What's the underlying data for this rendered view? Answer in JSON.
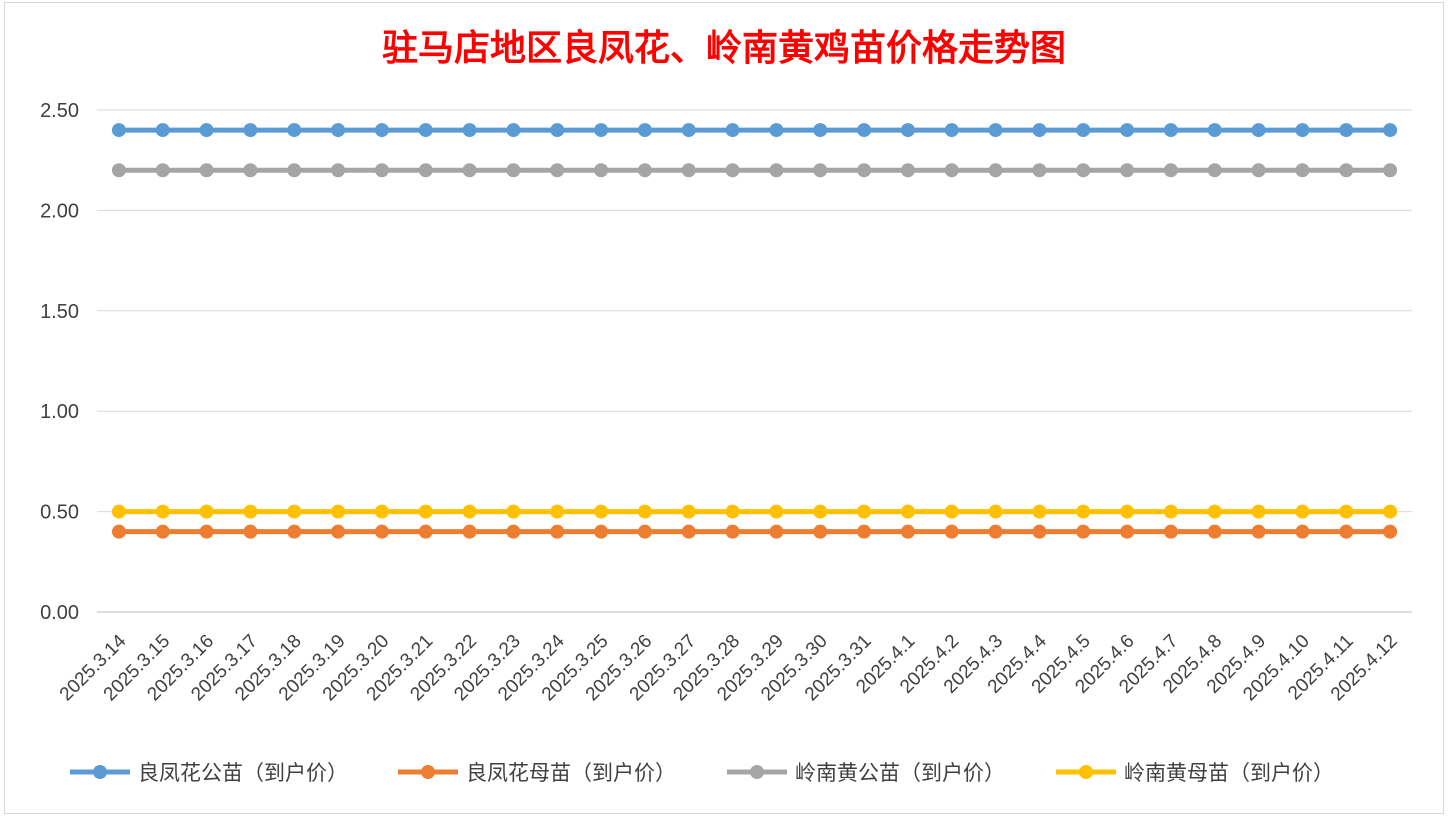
{
  "chart_data": {
    "type": "line",
    "title": "驻马店地区良凤花、岭南黄鸡苗价格走势图",
    "xlabel": "",
    "ylabel": "",
    "ylim": [
      0,
      2.5
    ],
    "yticks": [
      "0.00",
      "0.50",
      "1.00",
      "1.50",
      "2.00",
      "2.50"
    ],
    "grid": true,
    "legend_position": "bottom",
    "categories": [
      "2025.3.14",
      "2025.3.15",
      "2025.3.16",
      "2025.3.17",
      "2025.3.18",
      "2025.3.19",
      "2025.3.20",
      "2025.3.21",
      "2025.3.22",
      "2025.3.23",
      "2025.3.24",
      "2025.3.25",
      "2025.3.26",
      "2025.3.27",
      "2025.3.28",
      "2025.3.29",
      "2025.3.30",
      "2025.3.31",
      "2025.4.1",
      "2025.4.2",
      "2025.4.3",
      "2025.4.4",
      "2025.4.5",
      "2025.4.6",
      "2025.4.7",
      "2025.4.8",
      "2025.4.9",
      "2025.4.10",
      "2025.4.11",
      "2025.4.12"
    ],
    "series": [
      {
        "name": "良凤花公苗（到户价）",
        "color": "#5b9bd5",
        "values": [
          2.4,
          2.4,
          2.4,
          2.4,
          2.4,
          2.4,
          2.4,
          2.4,
          2.4,
          2.4,
          2.4,
          2.4,
          2.4,
          2.4,
          2.4,
          2.4,
          2.4,
          2.4,
          2.4,
          2.4,
          2.4,
          2.4,
          2.4,
          2.4,
          2.4,
          2.4,
          2.4,
          2.4,
          2.4,
          2.4
        ]
      },
      {
        "name": "良凤花母苗（到户价）",
        "color": "#ed7d31",
        "values": [
          0.4,
          0.4,
          0.4,
          0.4,
          0.4,
          0.4,
          0.4,
          0.4,
          0.4,
          0.4,
          0.4,
          0.4,
          0.4,
          0.4,
          0.4,
          0.4,
          0.4,
          0.4,
          0.4,
          0.4,
          0.4,
          0.4,
          0.4,
          0.4,
          0.4,
          0.4,
          0.4,
          0.4,
          0.4,
          0.4
        ]
      },
      {
        "name": "岭南黄公苗（到户价）",
        "color": "#a5a5a5",
        "values": [
          2.2,
          2.2,
          2.2,
          2.2,
          2.2,
          2.2,
          2.2,
          2.2,
          2.2,
          2.2,
          2.2,
          2.2,
          2.2,
          2.2,
          2.2,
          2.2,
          2.2,
          2.2,
          2.2,
          2.2,
          2.2,
          2.2,
          2.2,
          2.2,
          2.2,
          2.2,
          2.2,
          2.2,
          2.2,
          2.2
        ]
      },
      {
        "name": "岭南黄母苗（到户价）",
        "color": "#ffc000",
        "values": [
          0.5,
          0.5,
          0.5,
          0.5,
          0.5,
          0.5,
          0.5,
          0.5,
          0.5,
          0.5,
          0.5,
          0.5,
          0.5,
          0.5,
          0.5,
          0.5,
          0.5,
          0.5,
          0.5,
          0.5,
          0.5,
          0.5,
          0.5,
          0.5,
          0.5,
          0.5,
          0.5,
          0.5,
          0.5,
          0.5
        ]
      }
    ]
  }
}
